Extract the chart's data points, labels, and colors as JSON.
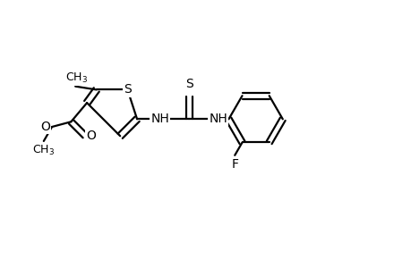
{
  "bg_color": "#ffffff",
  "line_color": "#000000",
  "line_width": 1.6,
  "font_size": 10,
  "figsize": [
    4.6,
    3.0
  ],
  "dpi": 100,
  "xlim": [
    0.0,
    1.0
  ],
  "ylim": [
    0.15,
    0.95
  ]
}
